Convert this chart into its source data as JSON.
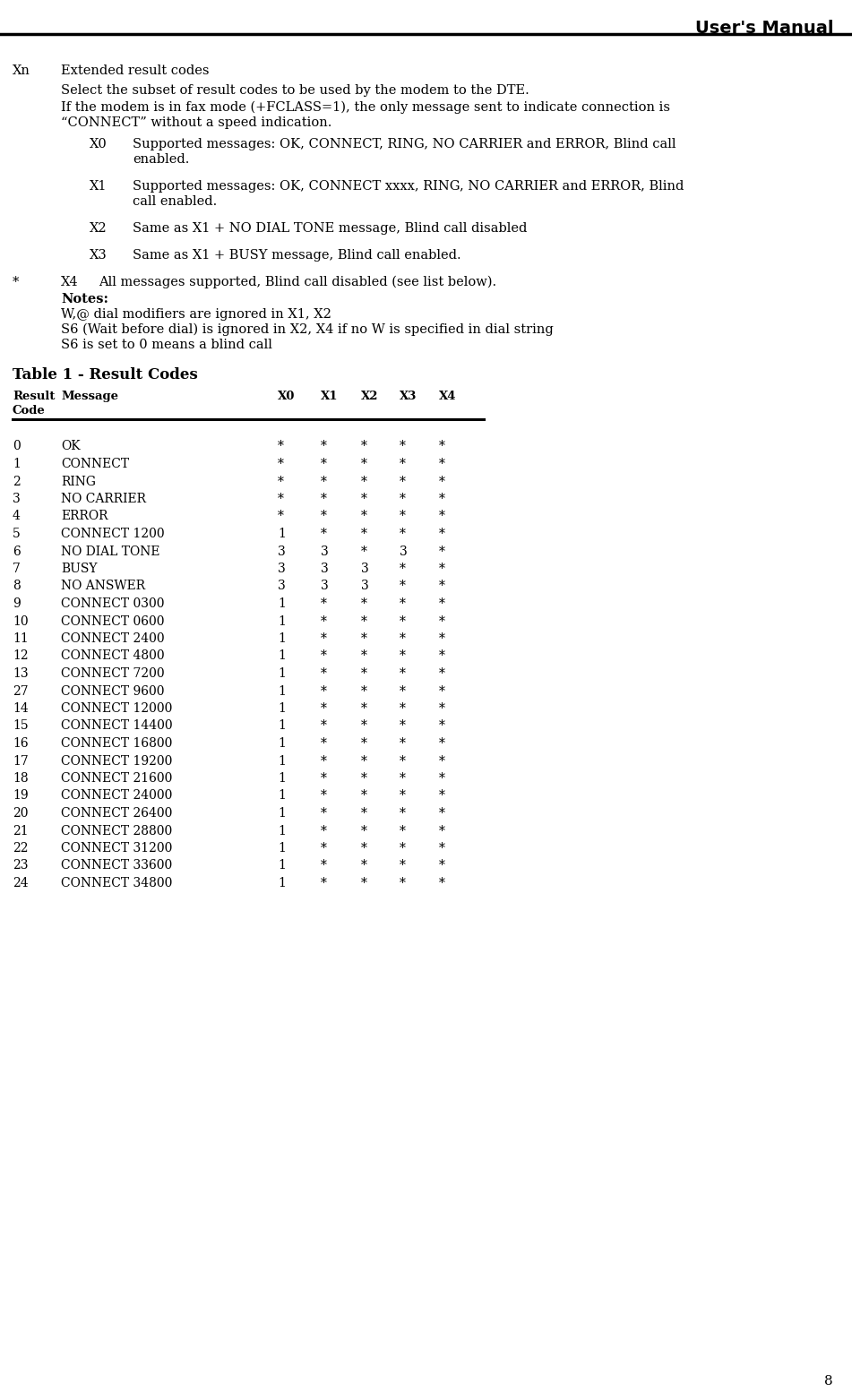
{
  "title": "User's Manual",
  "page_number": "8",
  "bg_color": "#ffffff",
  "text_color": "#000000",
  "section_label": "Xn",
  "section_title": "Extended result codes",
  "select_line": "Select the subset of result codes to be used by the modem to the DTE.",
  "fax_line1": "If the modem is in fax mode (+FCLASS=1), the only message sent to indicate connection is",
  "fax_line2": "“CONNECT” without a speed indication.",
  "x0_label": "X0",
  "x0_line1": "Supported messages: OK, CONNECT, RING, NO CARRIER and ERROR, Blind call",
  "x0_line2": "enabled.",
  "x1_label": "X1",
  "x1_line1": "Supported messages: OK, CONNECT xxxx, RING, NO CARRIER and ERROR, Blind",
  "x1_line2": "call enabled.",
  "x2_label": "X2",
  "x2_text": "Same as X1 + NO DIAL TONE message, Blind call disabled",
  "x3_label": "X3",
  "x3_text": "Same as X1 + BUSY message, Blind call enabled.",
  "star": "*",
  "x4_label": "X4",
  "x4_text": "All messages supported, Blind call disabled (see list below).",
  "notes_bold": "Notes:",
  "note1": "W,@ dial modifiers are ignored in X1, X2",
  "note2": "S6 (Wait before dial) is ignored in X2, X4 if no W is specified in dial string",
  "note3": "S6 is set to 0 means a blind call",
  "table_title": "Table 1 - Result Codes",
  "col_result": "Result",
  "col_code": "Code",
  "col_message": "Message",
  "col_x0": "X0",
  "col_x1": "X1",
  "col_x2": "X2",
  "col_x3": "X3",
  "col_x4": "X4",
  "table_rows": [
    [
      "0",
      "OK",
      "*",
      "*",
      "*",
      "*",
      "*"
    ],
    [
      "1",
      "CONNECT",
      "*",
      "*",
      "*",
      "*",
      "*"
    ],
    [
      "2",
      "RING",
      "*",
      "*",
      "*",
      "*",
      "*"
    ],
    [
      "3",
      "NO CARRIER",
      "*",
      "*",
      "*",
      "*",
      "*"
    ],
    [
      "4",
      "ERROR",
      "*",
      "*",
      "*",
      "*",
      "*"
    ],
    [
      "5",
      "CONNECT 1200",
      "1",
      "*",
      "*",
      "*",
      "*"
    ],
    [
      "6",
      "NO DIAL TONE",
      "3",
      "3",
      "*",
      "3",
      "*"
    ],
    [
      "7",
      "BUSY",
      "3",
      "3",
      "3",
      "*",
      "*"
    ],
    [
      "8",
      "NO ANSWER",
      "3",
      "3",
      "3",
      "*",
      "*"
    ],
    [
      "9",
      "CONNECT 0300",
      "1",
      "*",
      "*",
      "*",
      "*"
    ],
    [
      "10",
      "CONNECT 0600",
      "1",
      "*",
      "*",
      "*",
      "*"
    ],
    [
      "11",
      "CONNECT 2400",
      "1",
      "*",
      "*",
      "*",
      "*"
    ],
    [
      "12",
      "CONNECT 4800",
      "1",
      "*",
      "*",
      "*",
      "*"
    ],
    [
      "13",
      "CONNECT 7200",
      "1",
      "*",
      "*",
      "*",
      "*"
    ],
    [
      "27",
      "CONNECT 9600",
      "1",
      "*",
      "*",
      "*",
      "*"
    ],
    [
      "14",
      "CONNECT 12000",
      "1",
      "*",
      "*",
      "*",
      "*"
    ],
    [
      "15",
      "CONNECT 14400",
      "1",
      "*",
      "*",
      "*",
      "*"
    ],
    [
      "16",
      "CONNECT 16800",
      "1",
      "*",
      "*",
      "*",
      "*"
    ],
    [
      "17",
      "CONNECT 19200",
      "1",
      "*",
      "*",
      "*",
      "*"
    ],
    [
      "18",
      "CONNECT 21600",
      "1",
      "*",
      "*",
      "*",
      "*"
    ],
    [
      "19",
      "CONNECT 24000",
      "1",
      "*",
      "*",
      "*",
      "*"
    ],
    [
      "20",
      "CONNECT 26400",
      "1",
      "*",
      "*",
      "*",
      "*"
    ],
    [
      "21",
      "CONNECT 28800",
      "1",
      "*",
      "*",
      "*",
      "*"
    ],
    [
      "22",
      "CONNECT 31200",
      "1",
      "*",
      "*",
      "*",
      "*"
    ],
    [
      "23",
      "CONNECT 33600",
      "1",
      "*",
      "*",
      "*",
      "*"
    ],
    [
      "24",
      "CONNECT 34800",
      "1",
      "*",
      "*",
      "*",
      "*"
    ]
  ],
  "body_fontsize": 10.5,
  "table_header_fontsize": 9.5,
  "table_row_fontsize": 10.0,
  "header_title_fontsize": 14,
  "table_title_fontsize": 12,
  "notes_fontsize": 10.5,
  "page_num_fontsize": 11
}
